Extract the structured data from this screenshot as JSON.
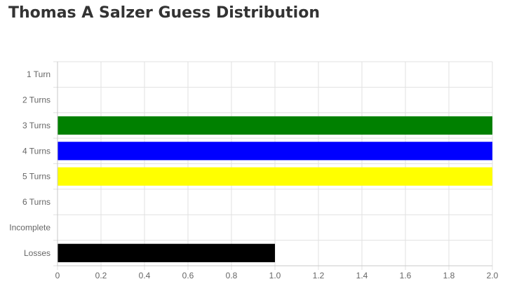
{
  "title": "Thomas A Salzer Guess Distribution",
  "chart_data": {
    "type": "bar",
    "orientation": "horizontal",
    "title": "Thomas A Salzer Guess Distribution",
    "xlabel": "",
    "ylabel": "",
    "categories": [
      "1 Turn",
      "2 Turns",
      "3 Turns",
      "4 Turns",
      "5 Turns",
      "6 Turns",
      "Incomplete",
      "Losses"
    ],
    "values": [
      0,
      0,
      2,
      2,
      2,
      0,
      0,
      1
    ],
    "colors": [
      "#000000",
      "#000000",
      "#008000",
      "#0000ff",
      "#ffff00",
      "#000000",
      "#000000",
      "#000000"
    ],
    "xlim": [
      0,
      2
    ],
    "xticks": [
      "0",
      "0.2",
      "0.4",
      "0.6",
      "0.8",
      "1.0",
      "1.2",
      "1.4",
      "1.6",
      "1.8",
      "2.0"
    ],
    "grid": true,
    "legend": "none"
  }
}
